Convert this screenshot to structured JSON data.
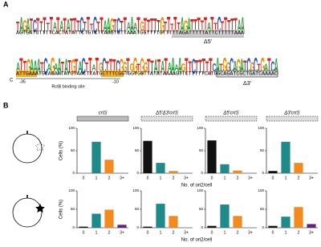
{
  "panel_a": {
    "label": "A",
    "logo_1": "TAGATCTTTTTATATATTTCTTTCTTAAGTCTTAAATGTTTTTGTTTTTAGATTTTTATTCTTTTTAA",
    "sequence_1": "AGTGATCTTTTCACTATATTCTGTCTTAAGTCTTAAATGGTTTTGTTTTTAGATTTTTATTCTTTTTAAA",
    "deletion_5": "Δ5'",
    "logo_2": "ATTGAAATCAGAATATGTACTTATGCTTTCGGTGGTGGTTATATAAAAGTTCTTTTTCATGGCAGATCGCTGATCA",
    "sequence_2": "ATTGAAATGCAGAATATGTAACTTATGCTTTCGGTGGTGGTTATATAAAAGTTCTTTTTCATGGCAGATCGCTGATCAAAAC",
    "marker_c": "C",
    "minus_35": "-35",
    "minus_10": "-10",
    "binding_site": "RctB binding site",
    "deletion_3": "Δ3'"
  },
  "panel_b": {
    "label": "B",
    "y_label": "Cells (%)",
    "x_label": "No. of ori2/cell",
    "categories": [
      "0",
      "1",
      "2",
      "3+"
    ],
    "colors": [
      "#111111",
      "#1f8a8a",
      "#f28a1c",
      "#6a1f7a"
    ],
    "ylim": [
      0,
      100
    ],
    "yticks": [
      0,
      50,
      100
    ],
    "titles": [
      "crtS",
      "Δ5'Δ3'crtS",
      "Δ5'crtS",
      "Δ3'crtS"
    ],
    "rows": [
      [
        [
          0,
          70,
          30,
          0
        ],
        [
          72,
          23,
          5,
          0
        ],
        [
          73,
          20,
          6,
          0
        ],
        [
          5,
          70,
          23,
          0
        ]
      ],
      [
        [
          3,
          38,
          49,
          8
        ],
        [
          3,
          65,
          32,
          0
        ],
        [
          5,
          63,
          32,
          0
        ],
        [
          5,
          30,
          56,
          10
        ]
      ]
    ]
  }
}
